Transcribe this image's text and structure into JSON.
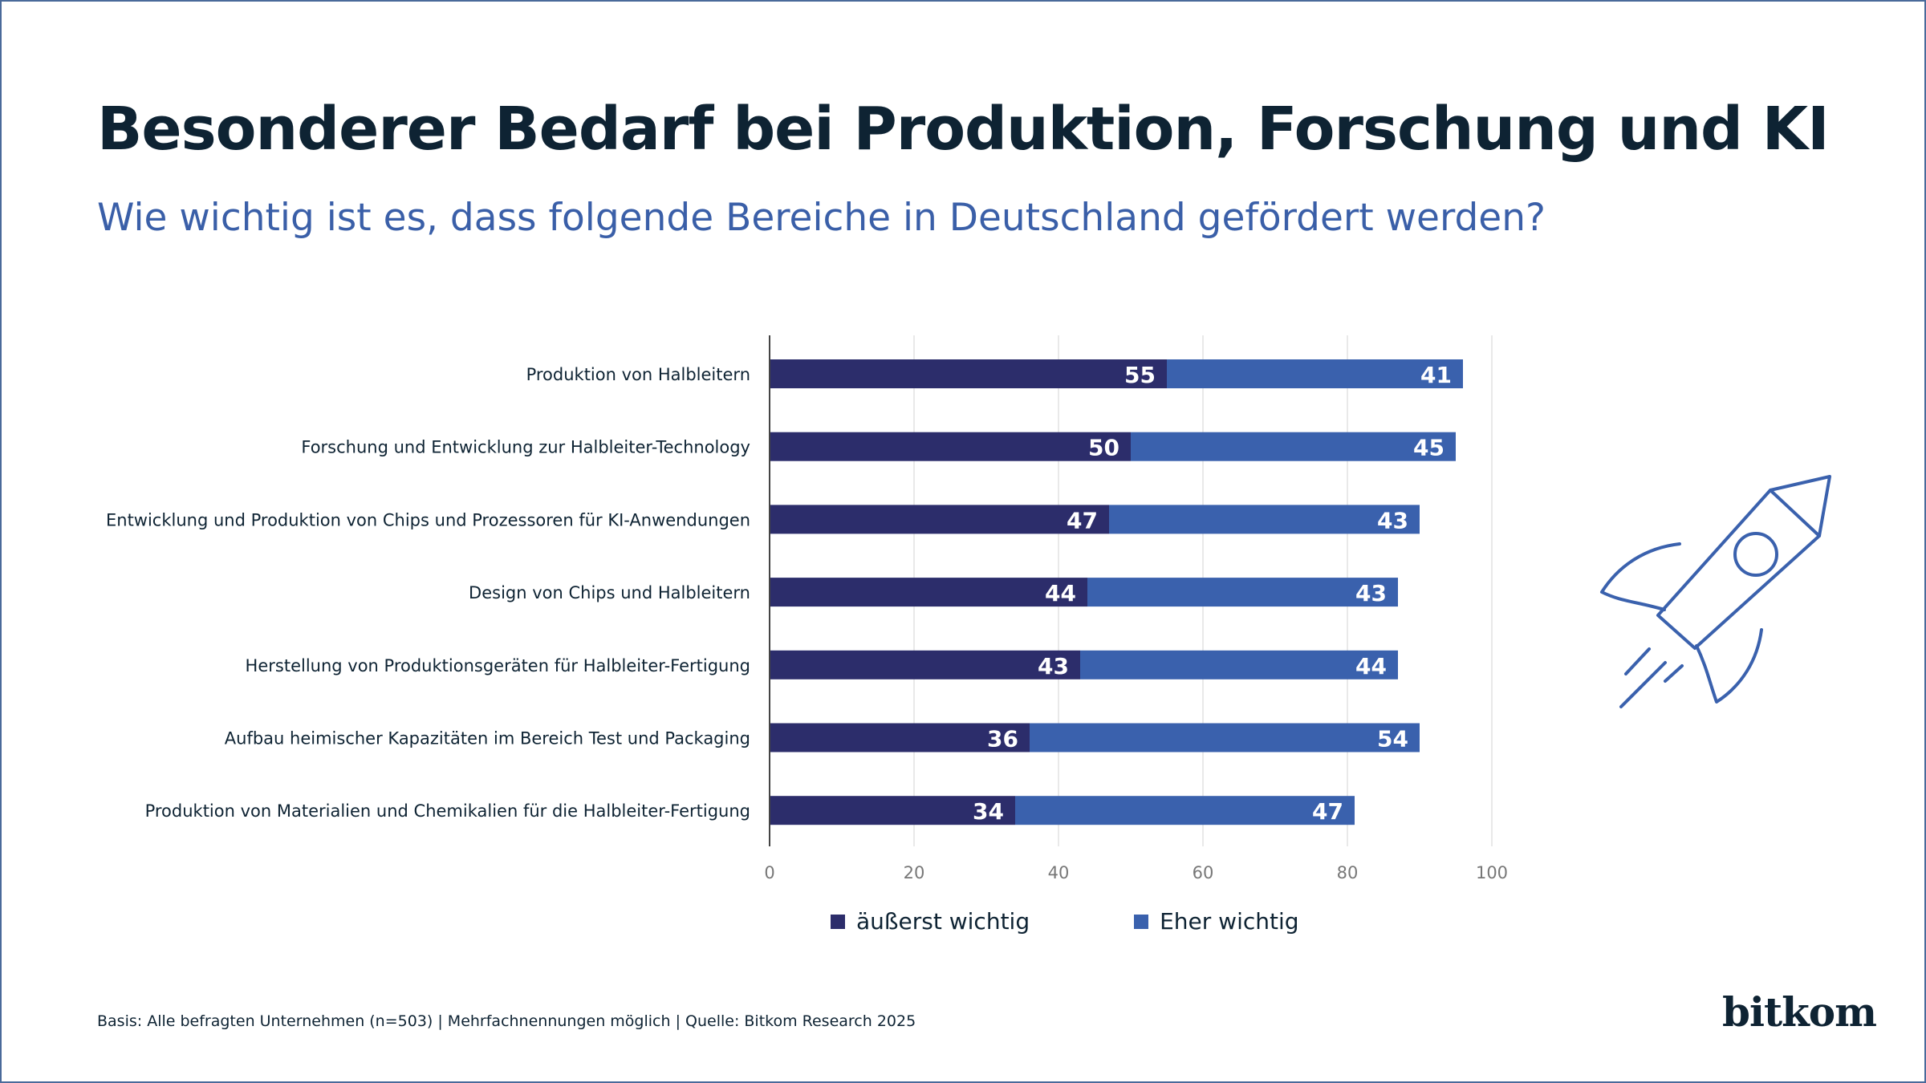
{
  "header": {
    "title": "Besonderer Bedarf bei Produktion, Forschung und KI",
    "subtitle": "Wie wichtig ist es, dass folgende Bereiche in Deutschland gefördert werden?"
  },
  "footer": {
    "note": "Basis: Alle befragten Unternehmen (n=503) | Mehrfachnennungen möglich | Quelle: Bitkom Research 2025",
    "logo_text": "bitkom"
  },
  "icons": {
    "decor": "rocket-icon"
  },
  "colors": {
    "series1": "#2c2d6b",
    "series2": "#3a61ad",
    "grid": "#e2e2e2",
    "axis": "#444444",
    "tick_text": "#777777",
    "label_text": "#0e2333",
    "title": "#0e2333",
    "subtitle": "#3a5fa8"
  },
  "chart_data": {
    "type": "bar",
    "orientation": "horizontal",
    "stacked": true,
    "categories": [
      "Produktion von Halbleitern",
      "Forschung und Entwicklung zur Halbleiter-Technology",
      "Entwicklung und Produktion von Chips und Prozessoren für KI-Anwendungen",
      "Design von Chips und Halbleitern",
      "Herstellung von Produktionsgeräten für Halbleiter-Fertigung",
      "Aufbau heimischer Kapazitäten im Bereich Test und Packaging",
      "Produktion von Materialien und Chemikalien für die Halbleiter-Fertigung"
    ],
    "series": [
      {
        "name": "äußerst wichtig",
        "values": [
          55,
          50,
          47,
          44,
          43,
          36,
          34
        ]
      },
      {
        "name": "Eher wichtig",
        "values": [
          41,
          45,
          43,
          43,
          44,
          54,
          47
        ]
      }
    ],
    "xlim": [
      0,
      100
    ],
    "xticks": [
      0,
      20,
      40,
      60,
      80,
      100
    ],
    "grid": true,
    "legend_position": "bottom",
    "data_labels": true
  }
}
